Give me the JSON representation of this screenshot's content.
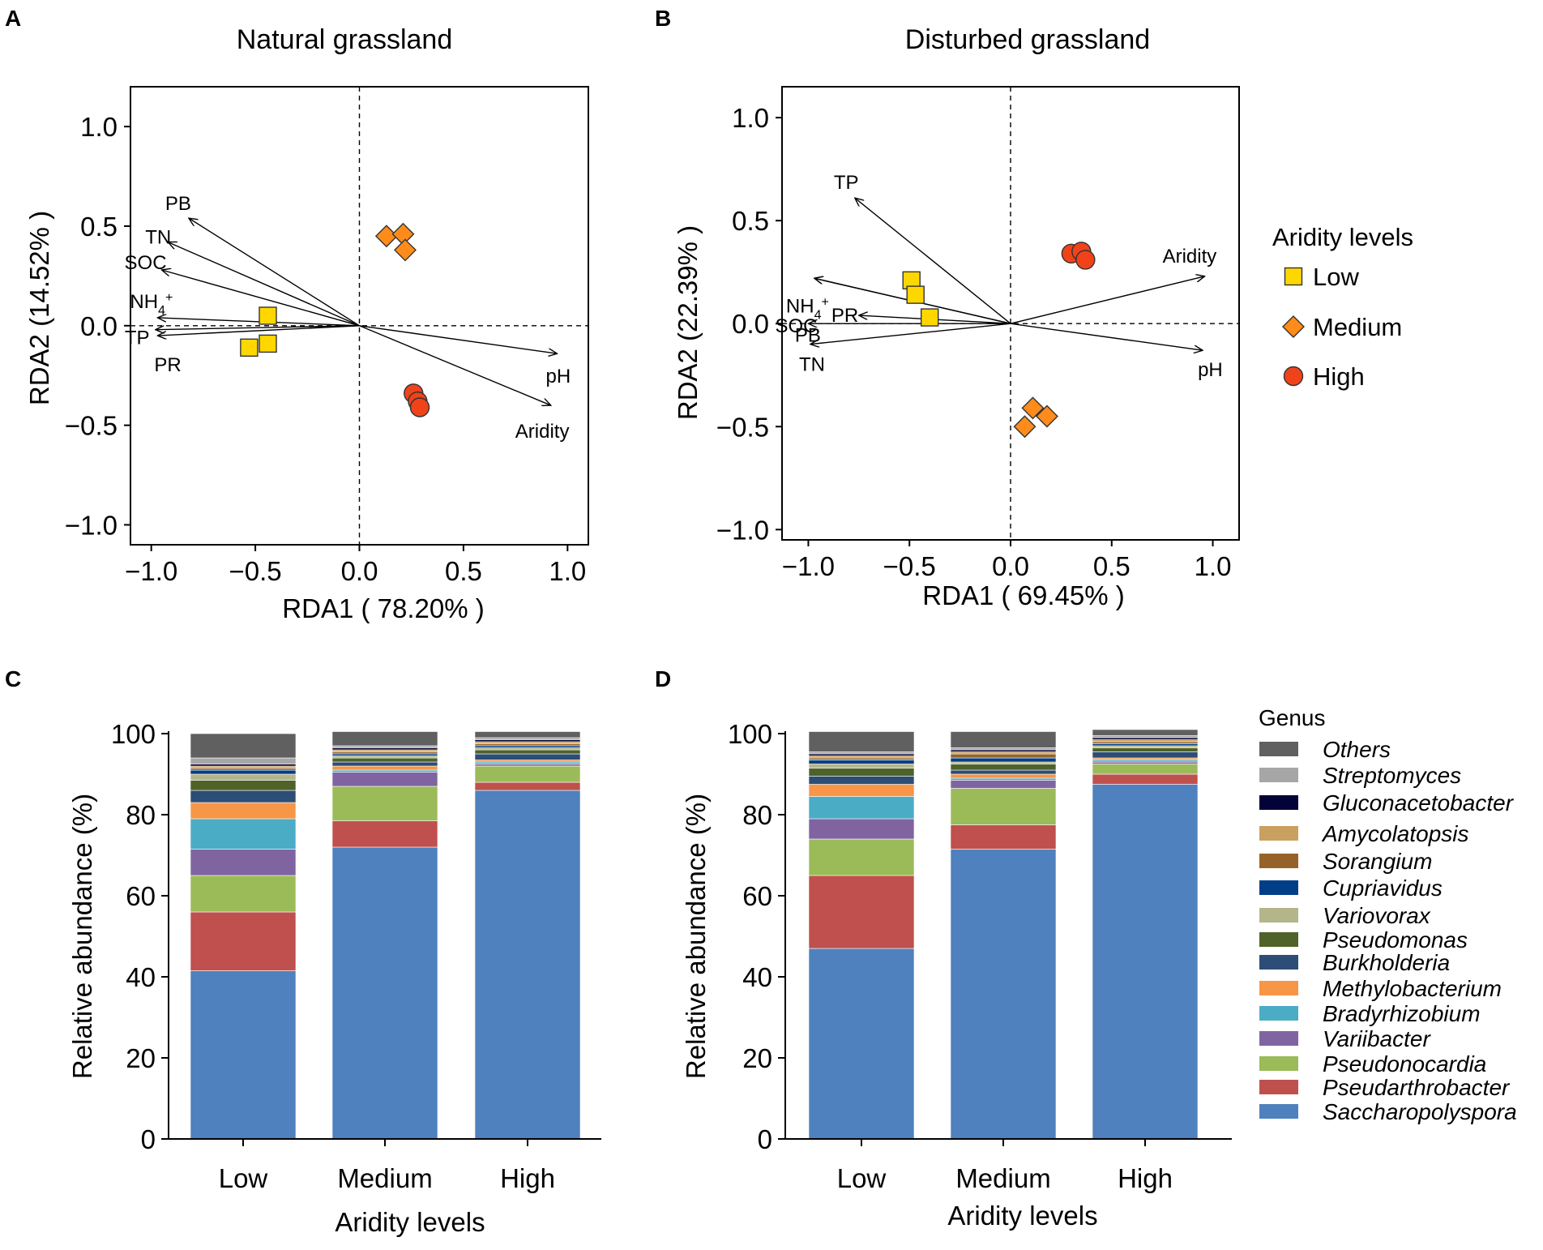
{
  "panels": {
    "A": {
      "letter": "A",
      "title": "Natural grassland"
    },
    "B": {
      "letter": "B",
      "title": "Disturbed grassland"
    },
    "C": {
      "letter": "C"
    },
    "D": {
      "letter": "D"
    }
  },
  "legend": {
    "rda_title": "Aridity levels",
    "groups": [
      {
        "name": "Low",
        "shape": "square",
        "color": "#FFD700"
      },
      {
        "name": "Medium",
        "shape": "diamond",
        "color": "#FF8C1A"
      },
      {
        "name": "High",
        "shape": "circle",
        "color": "#F0431A"
      }
    ],
    "genus_title": "Genus"
  },
  "chart_data": [
    {
      "id": "A",
      "type": "scatter",
      "title": "Natural grassland",
      "xlabel": "RDA1 ( 78.20% )",
      "ylabel": "RDA2 (14.52% )",
      "xlim": [
        -1.1,
        1.1
      ],
      "ylim": [
        -1.1,
        1.2
      ],
      "xticks": [
        -1.0,
        -0.5,
        0.0,
        0.5,
        1.0
      ],
      "yticks": [
        -1.0,
        -0.5,
        0.0,
        0.5,
        1.0
      ],
      "tick_labels_x": [
        "−1.0",
        "−0.5",
        "0.0",
        "0.5",
        "1.0"
      ],
      "tick_labels_y": [
        "−1.0",
        "−0.5",
        "0.0",
        "0.5",
        "1.0"
      ],
      "vectors": [
        {
          "name": "PB",
          "x": -0.82,
          "y": 0.54
        },
        {
          "name": "TN",
          "x": -0.92,
          "y": 0.42
        },
        {
          "name": "SOC",
          "x": -0.95,
          "y": 0.28
        },
        {
          "name": "NH4+",
          "x": -0.97,
          "y": 0.04
        },
        {
          "name": "TP",
          "x": -0.98,
          "y": -0.02
        },
        {
          "name": "PR",
          "x": -0.97,
          "y": -0.05
        },
        {
          "name": "pH",
          "x": 0.95,
          "y": -0.14
        },
        {
          "name": "Aridity",
          "x": 0.92,
          "y": -0.4
        }
      ],
      "series": [
        {
          "name": "Low",
          "points": [
            [
              -0.44,
              0.05
            ],
            [
              -0.44,
              -0.09
            ],
            [
              -0.53,
              -0.11
            ]
          ]
        },
        {
          "name": "Medium",
          "points": [
            [
              0.13,
              0.45
            ],
            [
              0.21,
              0.46
            ],
            [
              0.22,
              0.38
            ]
          ]
        },
        {
          "name": "High",
          "points": [
            [
              0.26,
              -0.34
            ],
            [
              0.28,
              -0.38
            ],
            [
              0.29,
              -0.41
            ]
          ]
        }
      ]
    },
    {
      "id": "B",
      "type": "scatter",
      "title": "Disturbed grassland",
      "xlabel": "RDA1 ( 69.45% )",
      "ylabel": "RDA2 (22.39% )",
      "xlim": [
        -1.13,
        1.13
      ],
      "ylim": [
        -1.05,
        1.15
      ],
      "xticks": [
        -1.0,
        -0.5,
        0.0,
        0.5,
        1.0
      ],
      "yticks": [
        -1.0,
        -0.5,
        0.0,
        0.5,
        1.0
      ],
      "tick_labels_x": [
        "−1.0",
        "−0.5",
        "0.0",
        "0.5",
        "1.0"
      ],
      "tick_labels_y": [
        "−1.0",
        "−0.5",
        "0.0",
        "0.5",
        "1.0"
      ],
      "vectors": [
        {
          "name": "TP",
          "x": -0.77,
          "y": 0.61
        },
        {
          "name": "NH4+",
          "x": -0.97,
          "y": 0.22
        },
        {
          "name": "PB",
          "x": -0.97,
          "y": 0.22
        },
        {
          "name": "PR",
          "x": -0.75,
          "y": 0.04
        },
        {
          "name": "SOC",
          "x": -1.0,
          "y": 0.0
        },
        {
          "name": "TN",
          "x": -0.99,
          "y": -0.1
        },
        {
          "name": "Aridity",
          "x": 0.96,
          "y": 0.23
        },
        {
          "name": "pH",
          "x": 0.95,
          "y": -0.13
        }
      ],
      "series": [
        {
          "name": "Low",
          "points": [
            [
              -0.49,
              0.21
            ],
            [
              -0.47,
              0.14
            ],
            [
              -0.4,
              0.03
            ]
          ]
        },
        {
          "name": "Medium",
          "points": [
            [
              0.11,
              -0.41
            ],
            [
              0.18,
              -0.45
            ],
            [
              0.07,
              -0.5
            ]
          ]
        },
        {
          "name": "High",
          "points": [
            [
              0.3,
              0.34
            ],
            [
              0.35,
              0.35
            ],
            [
              0.37,
              0.31
            ]
          ]
        }
      ]
    },
    {
      "id": "C",
      "type": "bar",
      "stacked": true,
      "categories": [
        "Low",
        "Medium",
        "High"
      ],
      "xlabel": "Aridity levels",
      "ylabel": "Relative abundance (%)",
      "ylim": [
        0,
        100
      ],
      "yticks": [
        0,
        20,
        40,
        60,
        80,
        100
      ],
      "series": [
        {
          "name": "Saccharopolyspora",
          "color": "#4E81BD",
          "values": [
            41.5,
            72.0,
            86.0
          ]
        },
        {
          "name": "Pseudarthrobacter",
          "color": "#C0504D",
          "values": [
            14.5,
            6.5,
            2.0
          ]
        },
        {
          "name": "Pseudonocardia",
          "color": "#9BBB59",
          "values": [
            9.0,
            8.5,
            4.0
          ]
        },
        {
          "name": "Variibacter",
          "color": "#8064A2",
          "values": [
            6.5,
            3.5,
            0.5
          ]
        },
        {
          "name": "Bradyrhizobium",
          "color": "#4BACC6",
          "values": [
            7.5,
            0.5,
            0.5
          ]
        },
        {
          "name": "Methylobacterium",
          "color": "#F79646",
          "values": [
            4.0,
            1.0,
            0.5
          ]
        },
        {
          "name": "Burkholderia",
          "color": "#2C4D75",
          "values": [
            3.0,
            1.0,
            1.5
          ]
        },
        {
          "name": "Pseudomonas",
          "color": "#4F6228",
          "values": [
            2.5,
            1.0,
            1.0
          ]
        },
        {
          "name": "Variovorax",
          "color": "#B5B58A",
          "values": [
            1.5,
            0.5,
            0.5
          ]
        },
        {
          "name": "Cupriavidus",
          "color": "#003F87",
          "values": [
            1.0,
            0.5,
            0.5
          ]
        },
        {
          "name": "Sorangium",
          "color": "#97622A",
          "values": [
            0.5,
            0.5,
            0.5
          ]
        },
        {
          "name": "Amycolatopsis",
          "color": "#C9A05F",
          "values": [
            0.5,
            0.5,
            0.5
          ]
        },
        {
          "name": "Gluconacetobacter",
          "color": "#040338",
          "values": [
            0.5,
            0.5,
            0.5
          ]
        },
        {
          "name": "Streptomyces",
          "color": "#A6A6A6",
          "values": [
            1.5,
            0.5,
            0.5
          ]
        },
        {
          "name": "Others",
          "color": "#606060",
          "values": [
            6.0,
            3.5,
            1.5
          ]
        }
      ]
    },
    {
      "id": "D",
      "type": "bar",
      "stacked": true,
      "categories": [
        "Low",
        "Medium",
        "High"
      ],
      "xlabel": "Aridity levels",
      "ylabel": "Relative abundance (%)",
      "ylim": [
        0,
        100
      ],
      "yticks": [
        0,
        20,
        40,
        60,
        80,
        100
      ],
      "series": [
        {
          "name": "Saccharopolyspora",
          "color": "#4E81BD",
          "values": [
            47.0,
            71.5,
            87.5
          ]
        },
        {
          "name": "Pseudarthrobacter",
          "color": "#C0504D",
          "values": [
            18.0,
            6.0,
            2.5
          ]
        },
        {
          "name": "Pseudonocardia",
          "color": "#9BBB59",
          "values": [
            9.0,
            9.0,
            2.5
          ]
        },
        {
          "name": "Variibacter",
          "color": "#8064A2",
          "values": [
            5.0,
            2.0,
            0.5
          ]
        },
        {
          "name": "Bradyrhizobium",
          "color": "#4BACC6",
          "values": [
            5.5,
            0.5,
            0.5
          ]
        },
        {
          "name": "Methylobacterium",
          "color": "#F79646",
          "values": [
            3.0,
            1.0,
            0.5
          ]
        },
        {
          "name": "Burkholderia",
          "color": "#2C4D75",
          "values": [
            2.0,
            1.0,
            1.5
          ]
        },
        {
          "name": "Pseudomonas",
          "color": "#4F6228",
          "values": [
            2.0,
            1.5,
            1.0
          ]
        },
        {
          "name": "Variovorax",
          "color": "#B5B58A",
          "values": [
            1.0,
            0.5,
            0.5
          ]
        },
        {
          "name": "Cupriavidus",
          "color": "#003F87",
          "values": [
            1.0,
            1.0,
            0.5
          ]
        },
        {
          "name": "Sorangium",
          "color": "#97622A",
          "values": [
            0.5,
            1.0,
            0.5
          ]
        },
        {
          "name": "Amycolatopsis",
          "color": "#C9A05F",
          "values": [
            0.5,
            0.5,
            0.5
          ]
        },
        {
          "name": "Gluconacetobacter",
          "color": "#040338",
          "values": [
            0.5,
            0.5,
            0.5
          ]
        },
        {
          "name": "Streptomyces",
          "color": "#A6A6A6",
          "values": [
            0.5,
            0.5,
            0.5
          ]
        },
        {
          "name": "Others",
          "color": "#606060",
          "values": [
            5.0,
            4.0,
            1.5
          ]
        }
      ]
    }
  ]
}
